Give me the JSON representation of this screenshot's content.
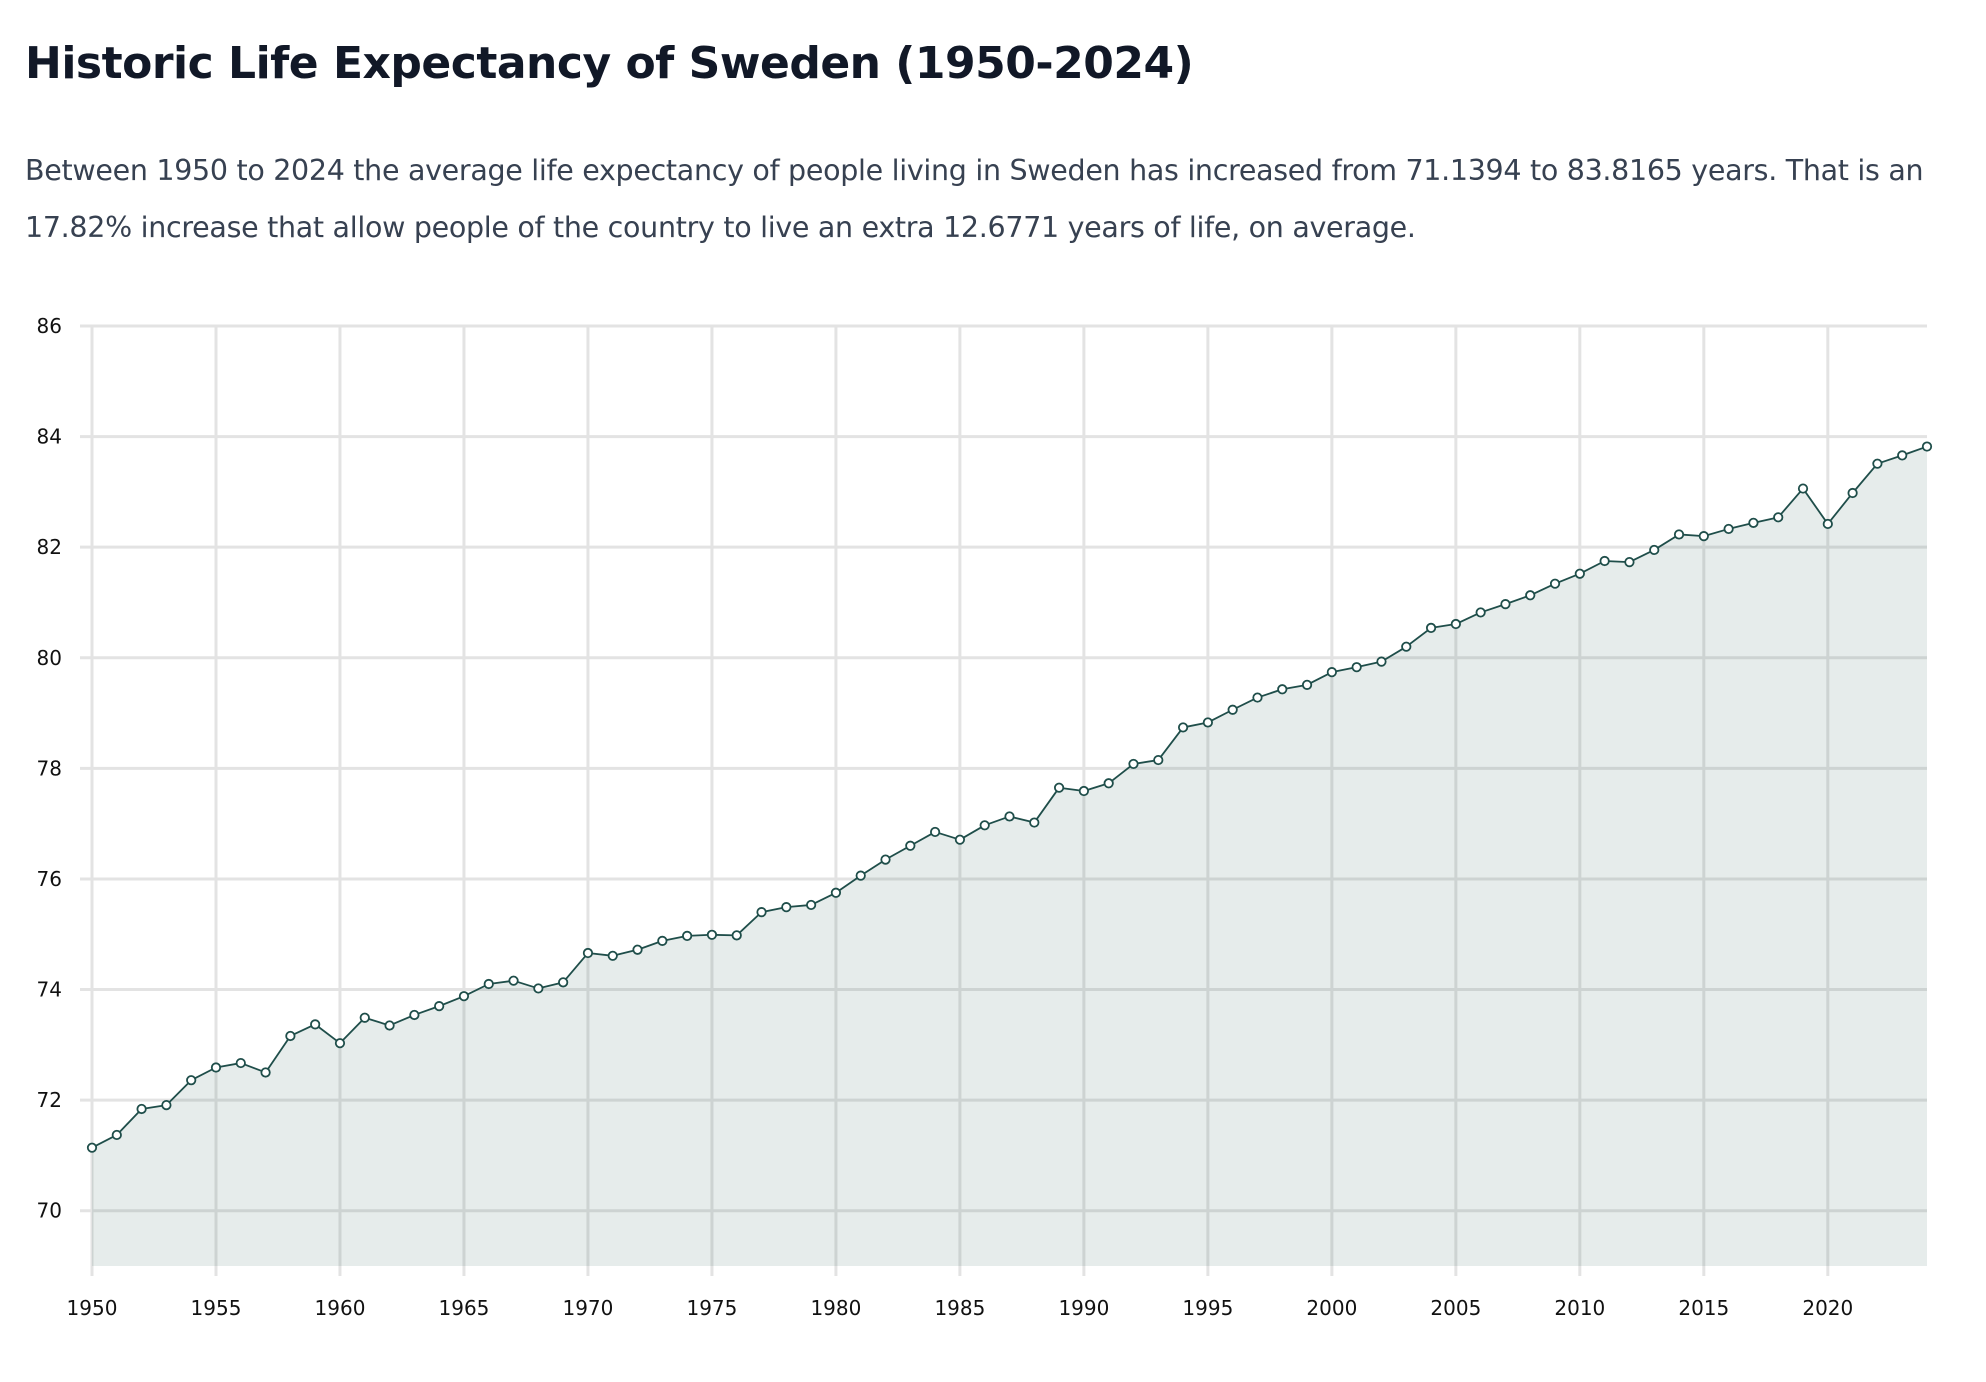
{
  "page": {
    "title": "Historic Life Expectancy of Sweden (1950-2024)",
    "description": "Between 1950 to 2024 the average life expectancy of people living in Sweden has increased from 71.1394 to 83.8165 years. That is an 17.82% increase that allow people of the country to live an extra 12.6771 years of life, on average."
  },
  "colors": {
    "line": "#1f4e4a",
    "area": "#e6ecec",
    "grid": "#e3e3e3",
    "text": "#111827"
  },
  "chart_data": {
    "type": "area",
    "title": "",
    "xlabel": "",
    "ylabel": "",
    "xlim": [
      1950,
      2024
    ],
    "ylim": [
      69,
      86
    ],
    "grid": true,
    "x_ticks": [
      1950,
      1955,
      1960,
      1965,
      1970,
      1975,
      1980,
      1985,
      1990,
      1995,
      2000,
      2005,
      2010,
      2015,
      2020
    ],
    "y_ticks": [
      70,
      72,
      74,
      76,
      78,
      80,
      82,
      84,
      86
    ],
    "series": [
      {
        "x": [
          1950,
          1951,
          1952,
          1953,
          1954,
          1955,
          1956,
          1957,
          1958,
          1959,
          1960,
          1961,
          1962,
          1963,
          1964,
          1965,
          1966,
          1967,
          1968,
          1969,
          1970,
          1971,
          1972,
          1973,
          1974,
          1975,
          1976,
          1977,
          1978,
          1979,
          1980,
          1981,
          1982,
          1983,
          1984,
          1985,
          1986,
          1987,
          1988,
          1989,
          1990,
          1991,
          1992,
          1993,
          1994,
          1995,
          1996,
          1997,
          1998,
          1999,
          2000,
          2001,
          2002,
          2003,
          2004,
          2005,
          2006,
          2007,
          2008,
          2009,
          2010,
          2011,
          2012,
          2013,
          2014,
          2015,
          2016,
          2017,
          2018,
          2019,
          2020,
          2021,
          2022,
          2023,
          2024
        ],
        "y": [
          71.14,
          71.37,
          71.84,
          71.91,
          72.36,
          72.59,
          72.67,
          72.5,
          73.16,
          73.37,
          73.03,
          73.49,
          73.35,
          73.54,
          73.7,
          73.88,
          74.1,
          74.16,
          74.02,
          74.13,
          74.66,
          74.61,
          74.72,
          74.88,
          74.97,
          74.99,
          74.98,
          75.4,
          75.49,
          75.53,
          75.75,
          76.06,
          76.35,
          76.6,
          76.85,
          76.71,
          76.97,
          77.13,
          77.02,
          77.65,
          77.59,
          77.73,
          78.08,
          78.15,
          78.74,
          78.83,
          79.06,
          79.28,
          79.43,
          79.51,
          79.74,
          79.83,
          79.93,
          80.2,
          80.54,
          80.61,
          80.82,
          80.97,
          81.13,
          81.34,
          81.52,
          81.75,
          81.73,
          81.95,
          82.23,
          82.2,
          82.33,
          82.44,
          82.54,
          83.06,
          82.42,
          82.98,
          83.51,
          83.66,
          83.82
        ]
      }
    ]
  }
}
